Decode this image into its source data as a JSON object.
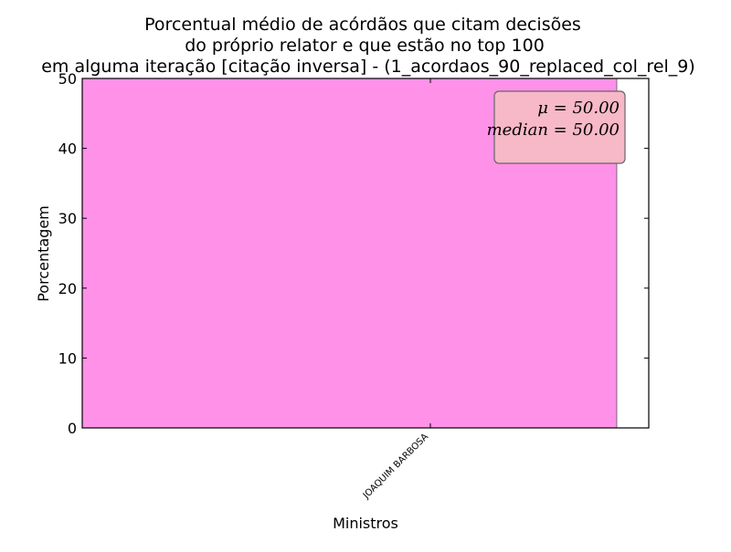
{
  "chart_data": {
    "type": "bar",
    "title": [
      "Porcentual médio de acórdãos que citam decisões",
      "do próprio relator e que estão no top 100",
      "em alguma iteração [citação inversa] - (1_acordaos_90_replaced_col_rel_9)"
    ],
    "xlabel": "Ministros",
    "ylabel": "Porcentagem",
    "categories": [
      "JOAQUIM BARBOSA"
    ],
    "values": [
      50
    ],
    "ylim": [
      0,
      50
    ],
    "yticks": [
      "0",
      "10",
      "20",
      "30",
      "40",
      "50"
    ],
    "bar_color": "#ff91e8",
    "grid": false,
    "annotation": {
      "lines": [
        "μ = 50.00",
        "median = 50.00"
      ],
      "box_color": "#f7b8c8",
      "position": "top-right"
    }
  }
}
